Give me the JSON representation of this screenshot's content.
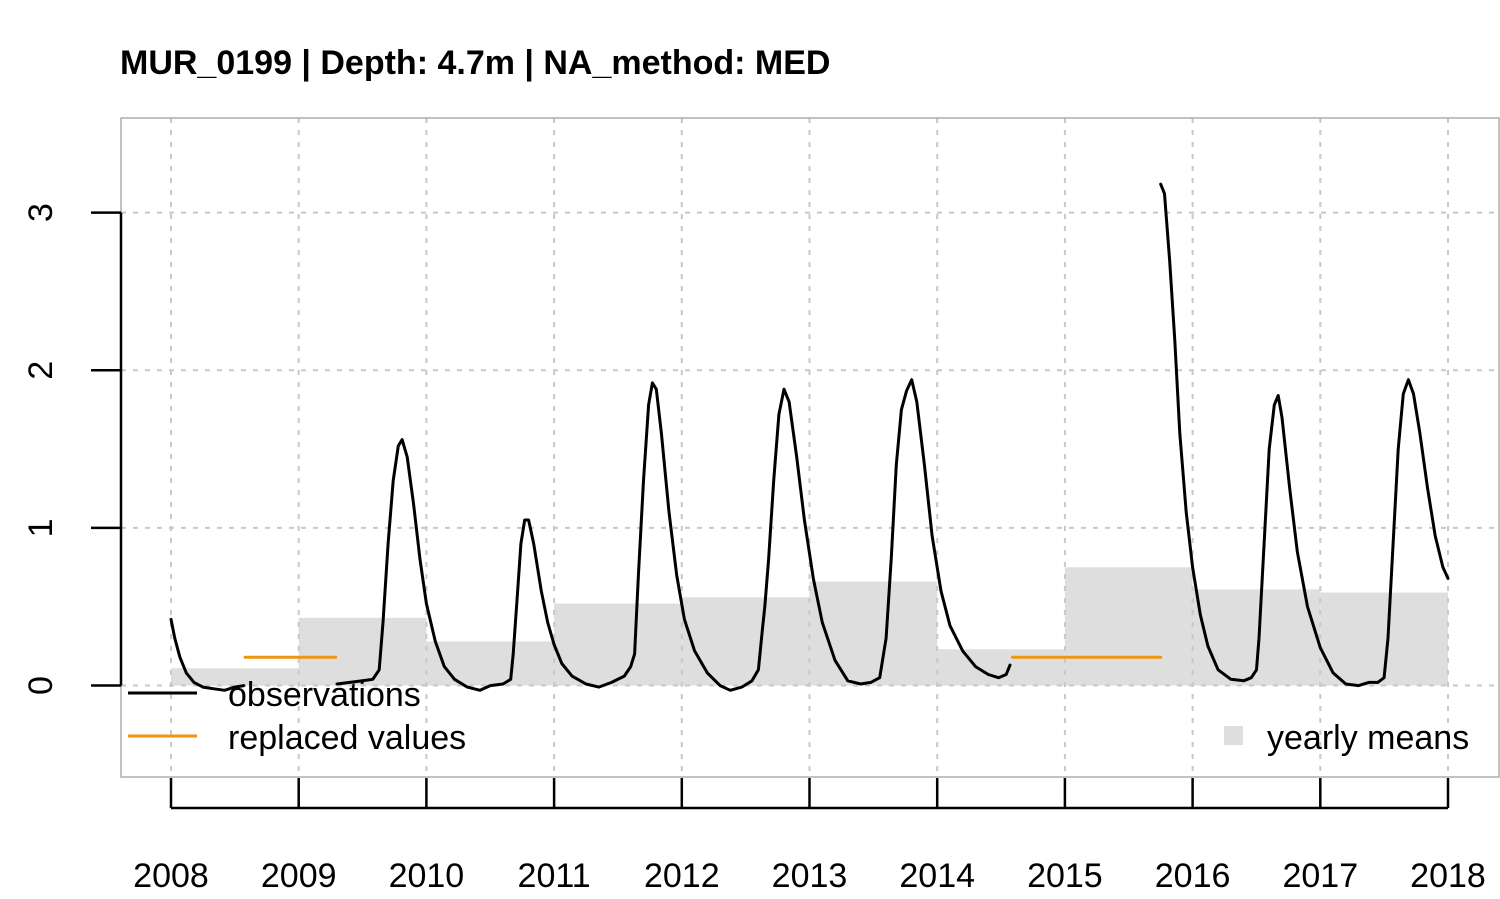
{
  "chart_data": {
    "type": "line",
    "title": "MUR_0199 | Depth: 4.7m | NA_method: MED",
    "xlabel": "",
    "ylabel": "",
    "xlim": [
      2008,
      2018
    ],
    "ylim": [
      -0.58,
      3.6
    ],
    "x_ticks": [
      2008,
      2009,
      2010,
      2011,
      2012,
      2013,
      2014,
      2015,
      2016,
      2017,
      2018
    ],
    "x_tick_labels": [
      "2008",
      "2009",
      "2010",
      "2011",
      "2012",
      "2013",
      "2014",
      "2015",
      "2016",
      "2017",
      "2018"
    ],
    "y_ticks": [
      0,
      1,
      2,
      3
    ],
    "y_tick_labels": [
      "0",
      "1",
      "2",
      "3"
    ],
    "grid": true,
    "legend": [
      {
        "label": "observations",
        "kind": "line",
        "color": "#000000",
        "position": "bottom-left"
      },
      {
        "label": "replaced values",
        "kind": "line",
        "color": "#f0950e",
        "position": "bottom-left"
      },
      {
        "label": "yearly means",
        "kind": "square",
        "color": "#dedede",
        "position": "bottom-right"
      }
    ],
    "series": [
      {
        "name": "observations",
        "color": "#000000",
        "segments": [
          [
            [
              2008.0,
              0.42
            ],
            [
              2008.03,
              0.3
            ],
            [
              2008.07,
              0.18
            ],
            [
              2008.12,
              0.08
            ],
            [
              2008.18,
              0.02
            ],
            [
              2008.25,
              -0.01
            ],
            [
              2008.33,
              -0.02
            ],
            [
              2008.42,
              -0.03
            ],
            [
              2008.5,
              -0.01
            ],
            [
              2008.57,
              0.0
            ]
          ],
          [
            [
              2009.3,
              0.01
            ],
            [
              2009.4,
              0.02
            ],
            [
              2009.5,
              0.03
            ],
            [
              2009.58,
              0.04
            ],
            [
              2009.63,
              0.1
            ],
            [
              2009.66,
              0.4
            ],
            [
              2009.7,
              0.9
            ],
            [
              2009.74,
              1.3
            ],
            [
              2009.78,
              1.52
            ],
            [
              2009.81,
              1.56
            ],
            [
              2009.85,
              1.45
            ],
            [
              2009.9,
              1.15
            ],
            [
              2009.95,
              0.8
            ],
            [
              2010.0,
              0.52
            ],
            [
              2010.07,
              0.28
            ],
            [
              2010.14,
              0.12
            ],
            [
              2010.22,
              0.04
            ],
            [
              2010.32,
              -0.01
            ],
            [
              2010.42,
              -0.03
            ],
            [
              2010.5,
              0.0
            ],
            [
              2010.6,
              0.01
            ],
            [
              2010.66,
              0.04
            ],
            [
              2010.68,
              0.2
            ],
            [
              2010.71,
              0.55
            ],
            [
              2010.74,
              0.9
            ],
            [
              2010.77,
              1.05
            ],
            [
              2010.8,
              1.05
            ],
            [
              2010.84,
              0.9
            ],
            [
              2010.9,
              0.6
            ],
            [
              2010.95,
              0.4
            ],
            [
              2011.0,
              0.26
            ],
            [
              2011.06,
              0.14
            ],
            [
              2011.14,
              0.06
            ],
            [
              2011.25,
              0.01
            ],
            [
              2011.35,
              -0.01
            ],
            [
              2011.45,
              0.02
            ],
            [
              2011.55,
              0.06
            ],
            [
              2011.6,
              0.12
            ],
            [
              2011.63,
              0.2
            ],
            [
              2011.66,
              0.7
            ],
            [
              2011.7,
              1.3
            ],
            [
              2011.74,
              1.78
            ],
            [
              2011.77,
              1.92
            ],
            [
              2011.8,
              1.88
            ],
            [
              2011.84,
              1.6
            ],
            [
              2011.9,
              1.1
            ],
            [
              2011.96,
              0.7
            ],
            [
              2012.02,
              0.42
            ],
            [
              2012.1,
              0.22
            ],
            [
              2012.2,
              0.08
            ],
            [
              2012.3,
              0.0
            ],
            [
              2012.38,
              -0.03
            ],
            [
              2012.47,
              -0.01
            ],
            [
              2012.55,
              0.03
            ],
            [
              2012.6,
              0.1
            ],
            [
              2012.63,
              0.35
            ],
            [
              2012.65,
              0.5
            ],
            [
              2012.68,
              0.8
            ],
            [
              2012.72,
              1.3
            ],
            [
              2012.76,
              1.72
            ],
            [
              2012.8,
              1.88
            ],
            [
              2012.84,
              1.8
            ],
            [
              2012.9,
              1.45
            ],
            [
              2012.96,
              1.05
            ],
            [
              2013.03,
              0.68
            ],
            [
              2013.1,
              0.4
            ],
            [
              2013.2,
              0.16
            ],
            [
              2013.3,
              0.03
            ],
            [
              2013.4,
              0.01
            ],
            [
              2013.48,
              0.02
            ],
            [
              2013.55,
              0.05
            ],
            [
              2013.6,
              0.3
            ],
            [
              2013.64,
              0.8
            ],
            [
              2013.68,
              1.4
            ],
            [
              2013.72,
              1.75
            ],
            [
              2013.76,
              1.87
            ],
            [
              2013.8,
              1.94
            ],
            [
              2013.84,
              1.8
            ],
            [
              2013.9,
              1.4
            ],
            [
              2013.96,
              0.95
            ],
            [
              2014.03,
              0.6
            ],
            [
              2014.1,
              0.38
            ],
            [
              2014.2,
              0.22
            ],
            [
              2014.3,
              0.12
            ],
            [
              2014.4,
              0.07
            ],
            [
              2014.48,
              0.05
            ],
            [
              2014.54,
              0.07
            ],
            [
              2014.57,
              0.13
            ]
          ],
          [
            [
              2015.75,
              3.18
            ],
            [
              2015.78,
              3.12
            ],
            [
              2015.82,
              2.7
            ],
            [
              2015.86,
              2.2
            ],
            [
              2015.9,
              1.6
            ],
            [
              2015.95,
              1.1
            ],
            [
              2016.0,
              0.75
            ],
            [
              2016.06,
              0.45
            ],
            [
              2016.12,
              0.25
            ],
            [
              2016.2,
              0.1
            ],
            [
              2016.3,
              0.04
            ],
            [
              2016.4,
              0.03
            ],
            [
              2016.46,
              0.05
            ],
            [
              2016.5,
              0.1
            ],
            [
              2016.52,
              0.3
            ],
            [
              2016.56,
              0.9
            ],
            [
              2016.6,
              1.5
            ],
            [
              2016.64,
              1.78
            ],
            [
              2016.67,
              1.84
            ],
            [
              2016.7,
              1.7
            ],
            [
              2016.76,
              1.25
            ],
            [
              2016.82,
              0.85
            ],
            [
              2016.9,
              0.5
            ],
            [
              2017.0,
              0.24
            ],
            [
              2017.1,
              0.08
            ],
            [
              2017.2,
              0.01
            ],
            [
              2017.3,
              0.0
            ],
            [
              2017.38,
              0.02
            ],
            [
              2017.45,
              0.02
            ],
            [
              2017.5,
              0.05
            ],
            [
              2017.53,
              0.3
            ],
            [
              2017.57,
              0.9
            ],
            [
              2017.61,
              1.5
            ],
            [
              2017.65,
              1.85
            ],
            [
              2017.69,
              1.94
            ],
            [
              2017.73,
              1.85
            ],
            [
              2017.78,
              1.6
            ],
            [
              2017.84,
              1.25
            ],
            [
              2017.9,
              0.95
            ],
            [
              2017.96,
              0.75
            ],
            [
              2018.0,
              0.68
            ]
          ]
        ]
      },
      {
        "name": "replaced values",
        "color": "#f0950e",
        "segments": [
          [
            [
              2008.58,
              0.18
            ],
            [
              2009.29,
              0.18
            ]
          ],
          [
            [
              2014.59,
              0.18
            ],
            [
              2015.75,
              0.18
            ]
          ]
        ]
      }
    ],
    "yearly_means": {
      "name": "yearly means",
      "color": "#dedede",
      "bins": [
        {
          "start": 2008,
          "end": 2009,
          "value": 0.11
        },
        {
          "start": 2009,
          "end": 2010,
          "value": 0.43
        },
        {
          "start": 2010,
          "end": 2011,
          "value": 0.28
        },
        {
          "start": 2011,
          "end": 2012,
          "value": 0.52
        },
        {
          "start": 2012,
          "end": 2013,
          "value": 0.56
        },
        {
          "start": 2013,
          "end": 2014,
          "value": 0.66
        },
        {
          "start": 2014,
          "end": 2015,
          "value": 0.23
        },
        {
          "start": 2015,
          "end": 2016,
          "value": 0.75
        },
        {
          "start": 2016,
          "end": 2017,
          "value": 0.61
        },
        {
          "start": 2017,
          "end": 2018,
          "value": 0.59
        }
      ]
    }
  }
}
